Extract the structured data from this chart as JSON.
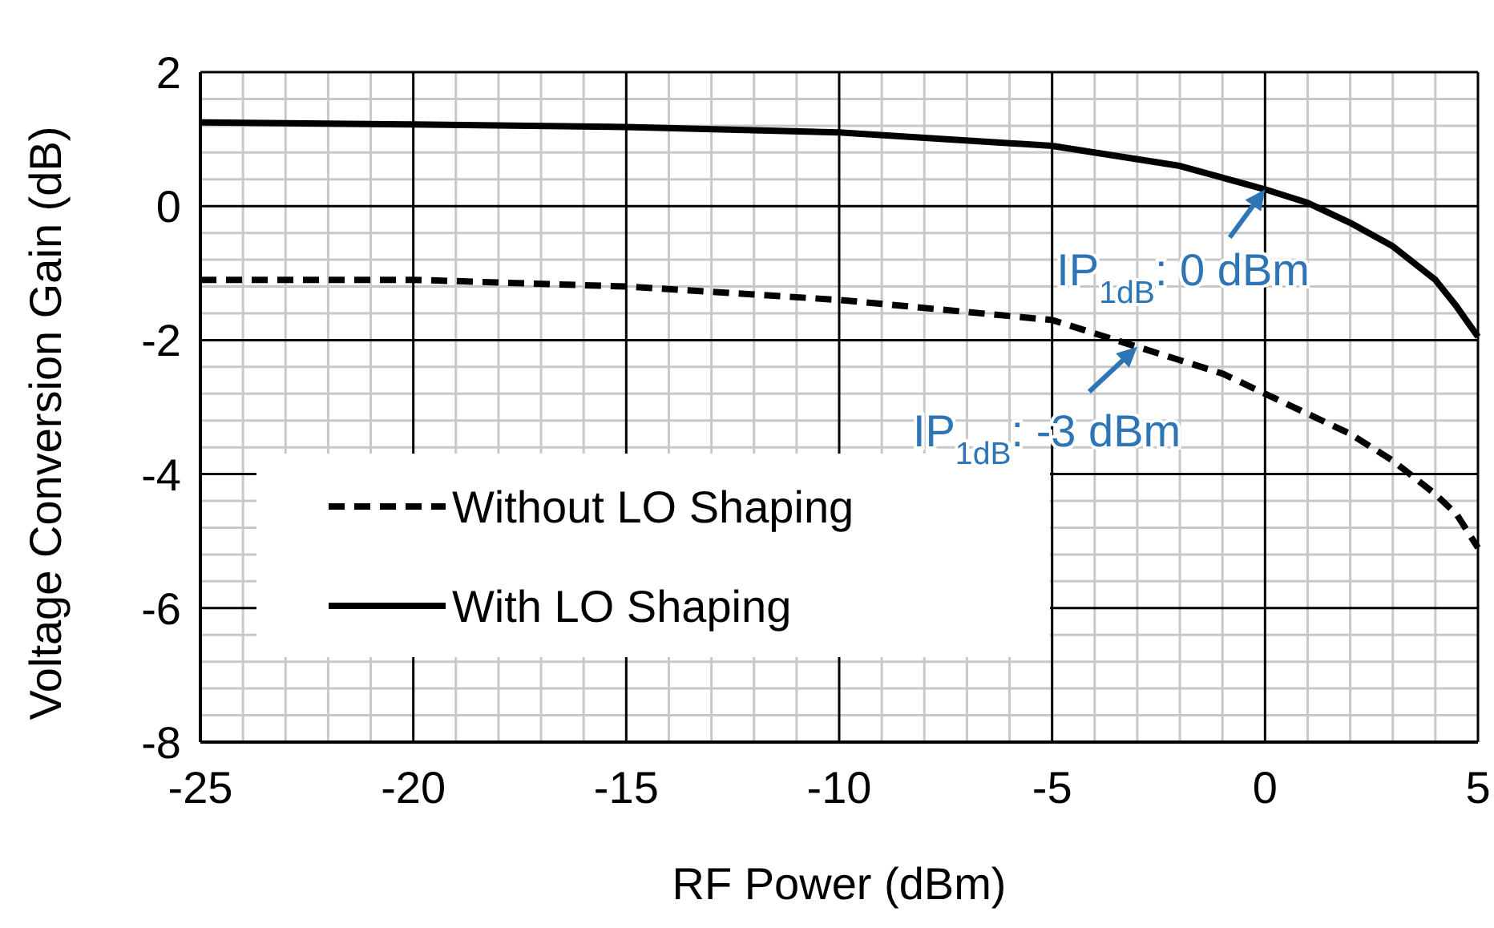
{
  "chart_data": {
    "type": "line",
    "xlabel": "RF Power (dBm)",
    "ylabel": "Voltage Conversion Gain (dB)",
    "xlim": [
      -25,
      5
    ],
    "xticks": [
      -25,
      -20,
      -15,
      -10,
      -5,
      0,
      5
    ],
    "ylim": [
      -8,
      2
    ],
    "yticks": [
      -8,
      -6,
      -4,
      -2,
      0,
      2
    ],
    "grid": true,
    "legend": "bottom left",
    "series": [
      {
        "name": "Without LO Shaping",
        "color": "#000000",
        "line_style": "dashed",
        "x": [
          -25,
          -20,
          -15,
          -10,
          -5,
          -3,
          -1,
          0,
          1,
          2,
          3,
          4,
          4.5,
          5
        ],
        "values": [
          -1.1,
          -1.1,
          -1.2,
          -1.4,
          -1.7,
          -2.1,
          -2.5,
          -2.8,
          -3.1,
          -3.4,
          -3.8,
          -4.3,
          -4.6,
          -5.1
        ]
      },
      {
        "name": "With LO Shaping",
        "color": "#000000",
        "line_style": "solid",
        "x": [
          -25,
          -20,
          -15,
          -10,
          -5,
          -2,
          0,
          1,
          2,
          3,
          4,
          4.5,
          5
        ],
        "values": [
          1.25,
          1.22,
          1.18,
          1.1,
          0.9,
          0.6,
          0.25,
          0.05,
          -0.25,
          -0.6,
          -1.1,
          -1.5,
          -1.95
        ]
      }
    ],
    "annotations": [
      {
        "text": "IP$_{1dB}$: 0 dBm",
        "x": 0,
        "y": 0.25
      },
      {
        "text": "IP$_{1dB}$: -3 dBm",
        "x": -3,
        "y": -2.1
      }
    ]
  }
}
